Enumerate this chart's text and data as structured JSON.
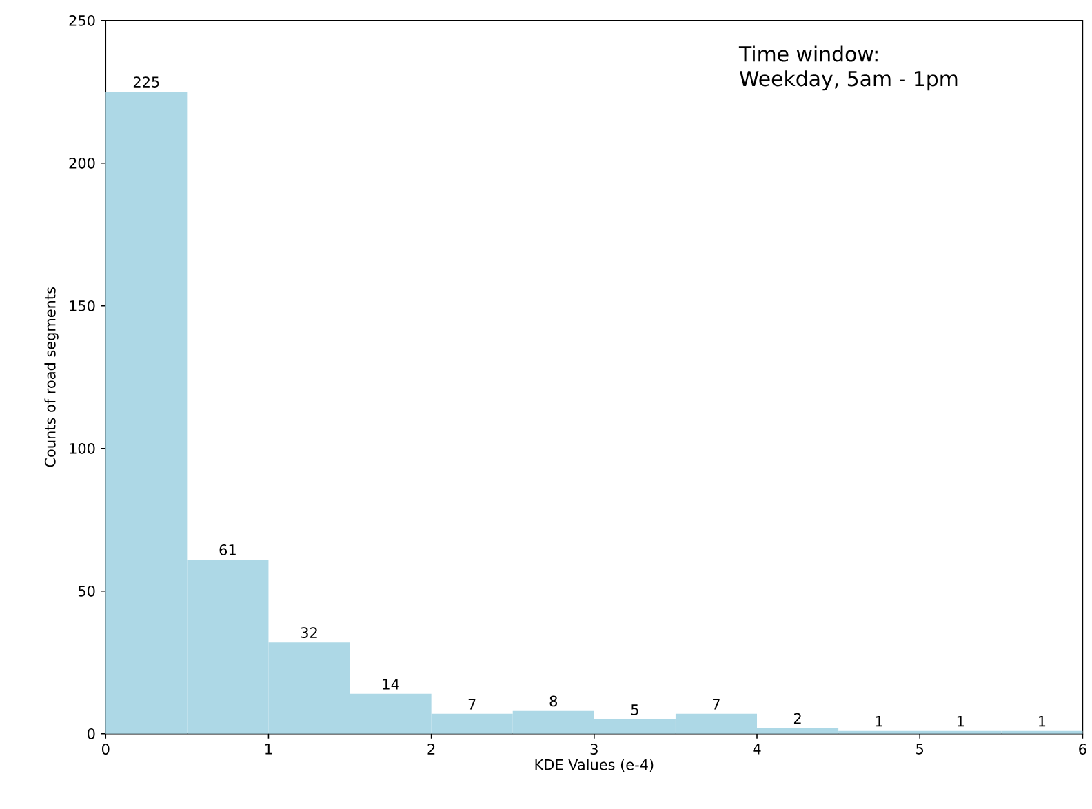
{
  "chart_data": {
    "type": "histogram",
    "bins": [
      0,
      0.5,
      1,
      1.5,
      2,
      2.5,
      3,
      3.5,
      4,
      4.5,
      5,
      5.5,
      6
    ],
    "values": [
      225,
      61,
      32,
      14,
      7,
      8,
      5,
      7,
      2,
      1,
      1,
      1
    ],
    "color": "#add8e6",
    "xlabel": "KDE Values (e-4)",
    "ylabel": "Counts of road segments",
    "xlim": [
      0,
      6
    ],
    "ylim": [
      0,
      250
    ],
    "xticks": [
      0,
      1,
      2,
      3,
      4,
      5,
      6
    ],
    "yticks": [
      0,
      50,
      100,
      150,
      200,
      250
    ],
    "data_labels": true,
    "grid": false,
    "annotations": [
      "Time window:",
      "Weekday, 5am - 1pm"
    ]
  }
}
